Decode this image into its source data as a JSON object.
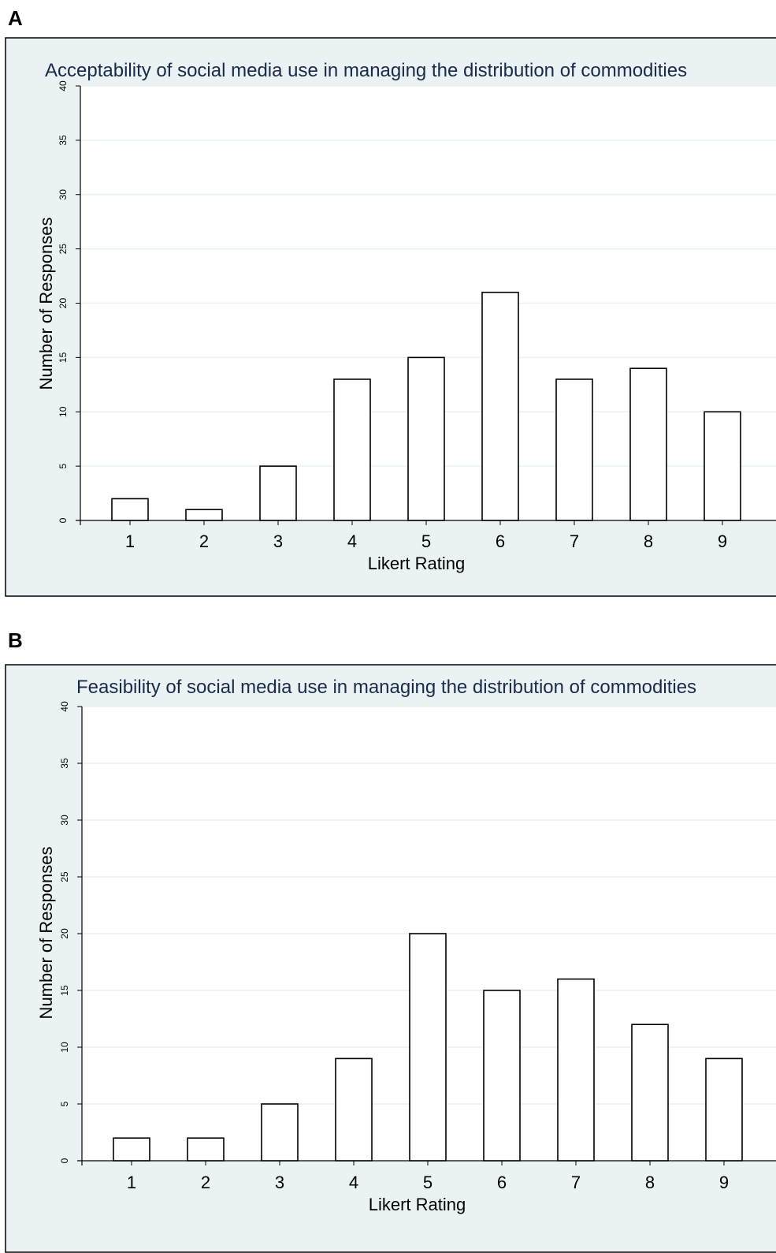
{
  "panels": [
    {
      "letter": "A"
    },
    {
      "letter": "B"
    }
  ],
  "colors": {
    "background": "#eaf2f3",
    "plot_area": "#ffffff",
    "title": "#1a2a4a",
    "gridline": "#eaf2f3",
    "bar_fill": "#ffffff",
    "bar_stroke": "#000000"
  },
  "chart_data": [
    {
      "type": "bar",
      "title": "Acceptability of social media use in managing the distribution of commodities",
      "xlabel": "Likert Rating",
      "ylabel": "Number of Responses",
      "categories": [
        "1",
        "2",
        "3",
        "4",
        "5",
        "6",
        "7",
        "8",
        "9"
      ],
      "values": [
        2,
        1,
        5,
        13,
        15,
        21,
        13,
        14,
        10
      ],
      "ylim": [
        0,
        40
      ],
      "yticks": [
        0,
        5,
        10,
        15,
        20,
        25,
        30,
        35,
        40
      ],
      "grid": true,
      "legend": "none"
    },
    {
      "type": "bar",
      "title": "Feasibility of social media use in managing the distribution of commodities",
      "xlabel": "Likert Rating",
      "ylabel": "Number of Responses",
      "categories": [
        "1",
        "2",
        "3",
        "4",
        "5",
        "6",
        "7",
        "8",
        "9"
      ],
      "values": [
        2,
        2,
        5,
        9,
        20,
        15,
        16,
        12,
        9
      ],
      "ylim": [
        0,
        40
      ],
      "yticks": [
        0,
        5,
        10,
        15,
        20,
        25,
        30,
        35,
        40
      ],
      "grid": true,
      "legend": "none"
    }
  ]
}
